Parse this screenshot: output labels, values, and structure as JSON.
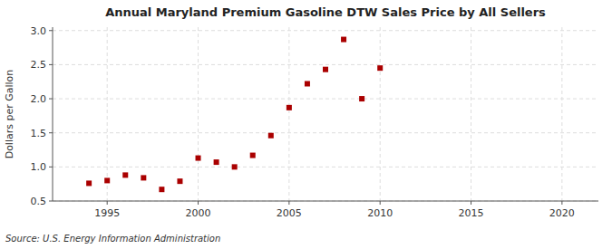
{
  "chart_data": {
    "type": "scatter",
    "title": "Annual Maryland Premium Gasoline DTW Sales Price by All Sellers",
    "y_label": "Dollars per Gallon",
    "annotations": [
      "Source: U.S. Energy Information Administration"
    ],
    "x": [
      1994,
      1995,
      1996,
      1997,
      1998,
      1999,
      2000,
      2001,
      2002,
      2003,
      2004,
      2005,
      2006,
      2007,
      2008,
      2009,
      2010
    ],
    "values": [
      0.76,
      0.8,
      0.88,
      0.84,
      0.67,
      0.79,
      1.13,
      1.07,
      1.0,
      1.17,
      1.46,
      1.87,
      2.22,
      2.43,
      2.87,
      2.0,
      2.45
    ],
    "color": "#aa0000",
    "marker": "square",
    "grid": true,
    "xlim": [
      1992,
      2022
    ],
    "ylim": [
      0.5,
      3.05
    ],
    "xticks": [
      1995,
      2000,
      2005,
      2010,
      2015,
      2020
    ],
    "yticks": [
      0.5,
      {
        "value": 1.0,
        "label": "1.0"
      },
      1.5,
      {
        "value": 2.0,
        "label": "2.0"
      },
      2.5,
      {
        "value": 3.0,
        "label": "3.0"
      }
    ]
  }
}
